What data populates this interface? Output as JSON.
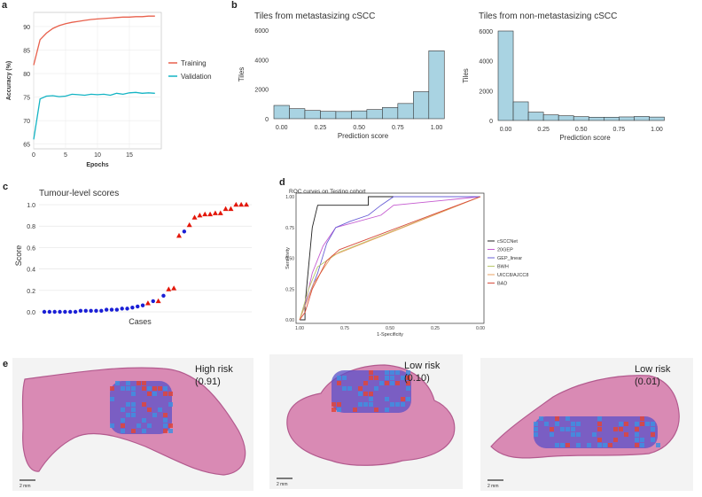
{
  "panels": {
    "a": "a",
    "b": "b",
    "c": "c",
    "d": "d",
    "e": "e"
  },
  "colors": {
    "red": "#e8604c",
    "teal": "#14b4c4",
    "hist": "#a9d3e2",
    "cases_red": "#e3170a",
    "cases_blue": "#1a1fd6"
  },
  "chart_data": [
    {
      "id": "a",
      "type": "line",
      "title": "",
      "xlabel": "Epochs",
      "ylabel": "Accuracy (%)",
      "xlim": [
        0,
        20
      ],
      "ylim": [
        64,
        93
      ],
      "xticks": [
        0,
        5,
        10,
        15
      ],
      "yticks": [
        65,
        70,
        75,
        80,
        85,
        90
      ],
      "legend_position": "right",
      "series": [
        {
          "name": "Training",
          "color": "#e8604c",
          "x": [
            0,
            1,
            2,
            3,
            4,
            5,
            6,
            7,
            8,
            9,
            10,
            11,
            12,
            13,
            14,
            15,
            16,
            17,
            18,
            19
          ],
          "values": [
            81.8,
            87.2,
            88.6,
            89.6,
            90.2,
            90.6,
            90.9,
            91.1,
            91.3,
            91.5,
            91.6,
            91.7,
            91.8,
            91.9,
            92.0,
            92.0,
            92.1,
            92.1,
            92.2,
            92.2
          ]
        },
        {
          "name": "Validation",
          "color": "#14b4c4",
          "x": [
            0,
            1,
            2,
            3,
            4,
            5,
            6,
            7,
            8,
            9,
            10,
            11,
            12,
            13,
            14,
            15,
            16,
            17,
            18,
            19
          ],
          "values": [
            66.0,
            74.6,
            75.2,
            75.3,
            75.1,
            75.2,
            75.6,
            75.5,
            75.4,
            75.6,
            75.5,
            75.6,
            75.4,
            75.8,
            75.6,
            75.9,
            76.0,
            75.8,
            75.9,
            75.8
          ]
        }
      ]
    },
    {
      "id": "b1",
      "type": "bar",
      "title": "Tiles from metastasizing cSCC",
      "xlabel": "Prediction score",
      "ylabel": "Tiles",
      "xlim": [
        -0.05,
        1.1
      ],
      "ylim": [
        0,
        6000
      ],
      "xticks": [
        "0.00",
        "0.25",
        "0.50",
        "0.75",
        "1.00"
      ],
      "yticks": [
        0,
        2000,
        4000,
        6000
      ],
      "bin_width": 0.1,
      "bin_starts": [
        -0.05,
        0.05,
        0.15,
        0.25,
        0.35,
        0.45,
        0.55,
        0.65,
        0.75,
        0.85,
        0.95
      ],
      "values": [
        900,
        680,
        560,
        500,
        490,
        530,
        620,
        760,
        1030,
        1830,
        4600
      ]
    },
    {
      "id": "b2",
      "type": "bar",
      "title": "Tiles from non-metastasizing cSCC",
      "xlabel": "Prediction score",
      "ylabel": "Tiles",
      "xlim": [
        -0.05,
        1.1
      ],
      "ylim": [
        0,
        6000
      ],
      "xticks": [
        "0.00",
        "0.25",
        "0.50",
        "0.75",
        "1.00"
      ],
      "yticks": [
        0,
        2000,
        4000,
        6000
      ],
      "bin_width": 0.1,
      "bin_starts": [
        -0.05,
        0.05,
        0.15,
        0.25,
        0.35,
        0.45,
        0.55,
        0.65,
        0.75,
        0.85,
        0.95
      ],
      "values": [
        6000,
        1250,
        560,
        380,
        320,
        260,
        220,
        220,
        240,
        270,
        230
      ]
    },
    {
      "id": "c",
      "type": "scatter",
      "title": "Tumour-level scores",
      "xlabel": "Cases",
      "ylabel": "Score",
      "ylim": [
        0,
        1.05
      ],
      "yticks": [
        "0.0",
        "0.2",
        "0.4",
        "0.6",
        "0.8",
        "1.0"
      ],
      "points": [
        {
          "y": 0.0,
          "group": "blue"
        },
        {
          "y": 0.0,
          "group": "blue"
        },
        {
          "y": 0.0,
          "group": "blue"
        },
        {
          "y": 0.0,
          "group": "blue"
        },
        {
          "y": 0.0,
          "group": "blue"
        },
        {
          "y": 0.0,
          "group": "blue"
        },
        {
          "y": 0.0,
          "group": "blue"
        },
        {
          "y": 0.01,
          "group": "blue"
        },
        {
          "y": 0.01,
          "group": "blue"
        },
        {
          "y": 0.01,
          "group": "blue"
        },
        {
          "y": 0.01,
          "group": "blue"
        },
        {
          "y": 0.01,
          "group": "blue"
        },
        {
          "y": 0.02,
          "group": "blue"
        },
        {
          "y": 0.02,
          "group": "blue"
        },
        {
          "y": 0.02,
          "group": "blue"
        },
        {
          "y": 0.03,
          "group": "blue"
        },
        {
          "y": 0.03,
          "group": "blue"
        },
        {
          "y": 0.04,
          "group": "blue"
        },
        {
          "y": 0.05,
          "group": "blue"
        },
        {
          "y": 0.06,
          "group": "blue"
        },
        {
          "y": 0.08,
          "group": "red"
        },
        {
          "y": 0.1,
          "group": "blue"
        },
        {
          "y": 0.1,
          "group": "red"
        },
        {
          "y": 0.15,
          "group": "blue"
        },
        {
          "y": 0.21,
          "group": "red"
        },
        {
          "y": 0.22,
          "group": "red"
        },
        {
          "y": 0.71,
          "group": "red"
        },
        {
          "y": 0.75,
          "group": "blue"
        },
        {
          "y": 0.81,
          "group": "red"
        },
        {
          "y": 0.88,
          "group": "red"
        },
        {
          "y": 0.9,
          "group": "red"
        },
        {
          "y": 0.91,
          "group": "red"
        },
        {
          "y": 0.91,
          "group": "red"
        },
        {
          "y": 0.92,
          "group": "red"
        },
        {
          "y": 0.92,
          "group": "red"
        },
        {
          "y": 0.96,
          "group": "red"
        },
        {
          "y": 0.96,
          "group": "red"
        },
        {
          "y": 1.0,
          "group": "red"
        },
        {
          "y": 1.0,
          "group": "red"
        },
        {
          "y": 1.0,
          "group": "red"
        }
      ]
    },
    {
      "id": "d",
      "type": "line",
      "title": "ROC curves on Testing cohort",
      "xlabel": "1-Specificity",
      "ylabel": "Sensitivity",
      "xlim": [
        1.0,
        0.0
      ],
      "ylim": [
        0,
        1
      ],
      "xticks": [
        "1.00",
        "0.75",
        "0.50",
        "0.25",
        "0.00"
      ],
      "yticks": [
        "0.00",
        "0.25",
        "0.50",
        "0.75",
        "1.00"
      ],
      "legend_position": "right",
      "series": [
        {
          "name": "cSCCNet",
          "color": "#222222",
          "points": [
            [
              1.0,
              0.0
            ],
            [
              0.97,
              0.0
            ],
            [
              0.97,
              0.12
            ],
            [
              0.93,
              0.75
            ],
            [
              0.9,
              0.93
            ],
            [
              0.62,
              0.93
            ],
            [
              0.62,
              1.0
            ],
            [
              0.0,
              1.0
            ]
          ]
        },
        {
          "name": "20GEP",
          "color": "#c55bd0",
          "points": [
            [
              1.0,
              0.0
            ],
            [
              0.97,
              0.12
            ],
            [
              0.93,
              0.38
            ],
            [
              0.87,
              0.6
            ],
            [
              0.8,
              0.75
            ],
            [
              0.55,
              0.85
            ],
            [
              0.48,
              0.93
            ],
            [
              0.0,
              1.0
            ]
          ]
        },
        {
          "name": "GEP_linear",
          "color": "#6a5fd6",
          "points": [
            [
              1.0,
              0.0
            ],
            [
              0.97,
              0.12
            ],
            [
              0.9,
              0.38
            ],
            [
              0.85,
              0.62
            ],
            [
              0.8,
              0.75
            ],
            [
              0.72,
              0.8
            ],
            [
              0.62,
              0.85
            ],
            [
              0.55,
              0.93
            ],
            [
              0.48,
              1.0
            ],
            [
              0.0,
              1.0
            ]
          ]
        },
        {
          "name": "BWH",
          "color": "#b8c86a",
          "points": [
            [
              1.0,
              0.0
            ],
            [
              0.95,
              0.25
            ],
            [
              0.9,
              0.43
            ],
            [
              0.78,
              0.55
            ],
            [
              0.0,
              1.0
            ]
          ]
        },
        {
          "name": "UICC8/AJCC8",
          "color": "#e8a060",
          "points": [
            [
              1.0,
              0.0
            ],
            [
              0.92,
              0.3
            ],
            [
              0.82,
              0.52
            ],
            [
              0.0,
              1.0
            ]
          ]
        },
        {
          "name": "BAD",
          "color": "#d84b3c",
          "points": [
            [
              1.0,
              0.0
            ],
            [
              0.97,
              0.06
            ],
            [
              0.93,
              0.25
            ],
            [
              0.85,
              0.48
            ],
            [
              0.78,
              0.57
            ],
            [
              0.0,
              1.0
            ]
          ]
        }
      ]
    }
  ],
  "slides": [
    {
      "label": "High risk",
      "score": "(0.91)",
      "scalebar": "2 mm"
    },
    {
      "label": "Low risk",
      "score": "(0.10)",
      "scalebar": "2 mm"
    },
    {
      "label": "Low risk",
      "score": "(0.01)",
      "scalebar": "2 mm"
    }
  ]
}
